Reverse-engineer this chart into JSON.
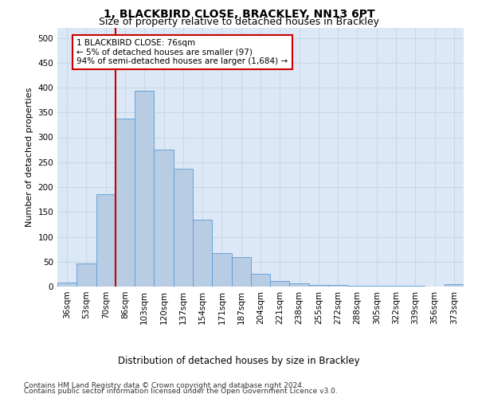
{
  "title_line1": "1, BLACKBIRD CLOSE, BRACKLEY, NN13 6PT",
  "title_line2": "Size of property relative to detached houses in Brackley",
  "xlabel": "Distribution of detached houses by size in Brackley",
  "ylabel": "Number of detached properties",
  "categories": [
    "36sqm",
    "53sqm",
    "70sqm",
    "86sqm",
    "103sqm",
    "120sqm",
    "137sqm",
    "154sqm",
    "171sqm",
    "187sqm",
    "204sqm",
    "221sqm",
    "238sqm",
    "255sqm",
    "272sqm",
    "288sqm",
    "305sqm",
    "322sqm",
    "339sqm",
    "356sqm",
    "373sqm"
  ],
  "values": [
    8,
    46,
    185,
    338,
    393,
    275,
    237,
    135,
    68,
    60,
    25,
    12,
    6,
    4,
    3,
    2,
    1,
    1,
    1,
    0,
    5
  ],
  "bar_color": "#b8cce4",
  "bar_edge_color": "#5b9bd5",
  "vline_x_index": 2,
  "vline_color": "#cc0000",
  "annotation_text": "1 BLACKBIRD CLOSE: 76sqm\n← 5% of detached houses are smaller (97)\n94% of semi-detached houses are larger (1,684) →",
  "annotation_box_color": "#ffffff",
  "annotation_box_edge_color": "#cc0000",
  "ylim": [
    0,
    520
  ],
  "yticks": [
    0,
    50,
    100,
    150,
    200,
    250,
    300,
    350,
    400,
    450,
    500
  ],
  "grid_color": "#c8d8ea",
  "bg_color": "#dce8f5",
  "footnote_line1": "Contains HM Land Registry data © Crown copyright and database right 2024.",
  "footnote_line2": "Contains public sector information licensed under the Open Government Licence v3.0.",
  "title_fontsize": 10,
  "subtitle_fontsize": 9,
  "xlabel_fontsize": 8.5,
  "ylabel_fontsize": 8,
  "tick_fontsize": 7.5,
  "annotation_fontsize": 7.5,
  "footnote_fontsize": 6.5
}
